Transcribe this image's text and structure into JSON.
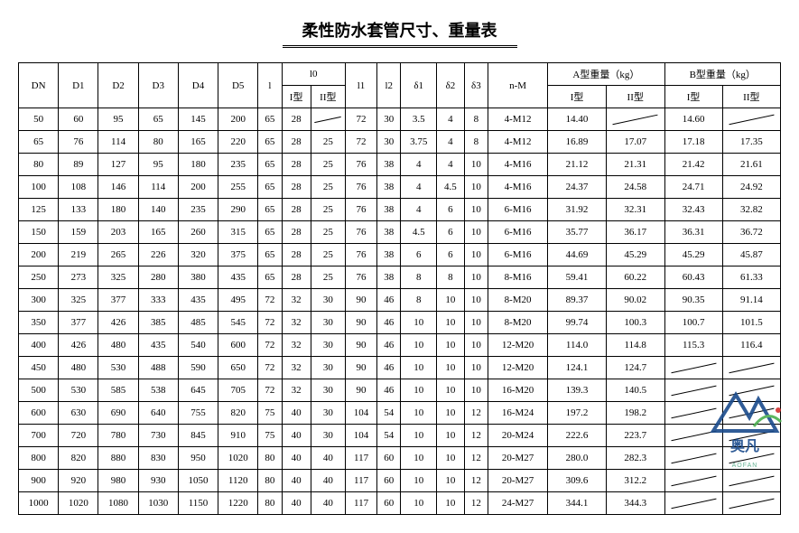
{
  "title": "柔性防水套管尺寸、重量表",
  "headers": {
    "top": [
      "DN",
      "D1",
      "D2",
      "D3",
      "D4",
      "D5",
      "l",
      "l0",
      "l1",
      "l2",
      "δ1",
      "δ2",
      "δ3",
      "n-M",
      "A型重量（kg）",
      "B型重量（kg）"
    ],
    "sub_l0": [
      "I型",
      "II型"
    ],
    "sub_A": [
      "I型",
      "II型"
    ],
    "sub_B": [
      "I型",
      "II型"
    ]
  },
  "rows": [
    {
      "DN": "50",
      "D1": "60",
      "D2": "95",
      "D3": "65",
      "D4": "145",
      "D5": "200",
      "l": "65",
      "l0_I": "28",
      "l0_II": "/",
      "l1": "72",
      "l2": "30",
      "d1": "3.5",
      "d2": "4",
      "d3": "8",
      "nM": "4-M12",
      "A_I": "14.40",
      "A_II": "/",
      "B_I": "14.60",
      "B_II": "/"
    },
    {
      "DN": "65",
      "D1": "76",
      "D2": "114",
      "D3": "80",
      "D4": "165",
      "D5": "220",
      "l": "65",
      "l0_I": "28",
      "l0_II": "25",
      "l1": "72",
      "l2": "30",
      "d1": "3.75",
      "d2": "4",
      "d3": "8",
      "nM": "4-M12",
      "A_I": "16.89",
      "A_II": "17.07",
      "B_I": "17.18",
      "B_II": "17.35"
    },
    {
      "DN": "80",
      "D1": "89",
      "D2": "127",
      "D3": "95",
      "D4": "180",
      "D5": "235",
      "l": "65",
      "l0_I": "28",
      "l0_II": "25",
      "l1": "76",
      "l2": "38",
      "d1": "4",
      "d2": "4",
      "d3": "10",
      "nM": "4-M16",
      "A_I": "21.12",
      "A_II": "21.31",
      "B_I": "21.42",
      "B_II": "21.61"
    },
    {
      "DN": "100",
      "D1": "108",
      "D2": "146",
      "D3": "114",
      "D4": "200",
      "D5": "255",
      "l": "65",
      "l0_I": "28",
      "l0_II": "25",
      "l1": "76",
      "l2": "38",
      "d1": "4",
      "d2": "4.5",
      "d3": "10",
      "nM": "4-M16",
      "A_I": "24.37",
      "A_II": "24.58",
      "B_I": "24.71",
      "B_II": "24.92"
    },
    {
      "DN": "125",
      "D1": "133",
      "D2": "180",
      "D3": "140",
      "D4": "235",
      "D5": "290",
      "l": "65",
      "l0_I": "28",
      "l0_II": "25",
      "l1": "76",
      "l2": "38",
      "d1": "4",
      "d2": "6",
      "d3": "10",
      "nM": "6-M16",
      "A_I": "31.92",
      "A_II": "32.31",
      "B_I": "32.43",
      "B_II": "32.82"
    },
    {
      "DN": "150",
      "D1": "159",
      "D2": "203",
      "D3": "165",
      "D4": "260",
      "D5": "315",
      "l": "65",
      "l0_I": "28",
      "l0_II": "25",
      "l1": "76",
      "l2": "38",
      "d1": "4.5",
      "d2": "6",
      "d3": "10",
      "nM": "6-M16",
      "A_I": "35.77",
      "A_II": "36.17",
      "B_I": "36.31",
      "B_II": "36.72"
    },
    {
      "DN": "200",
      "D1": "219",
      "D2": "265",
      "D3": "226",
      "D4": "320",
      "D5": "375",
      "l": "65",
      "l0_I": "28",
      "l0_II": "25",
      "l1": "76",
      "l2": "38",
      "d1": "6",
      "d2": "6",
      "d3": "10",
      "nM": "6-M16",
      "A_I": "44.69",
      "A_II": "45.29",
      "B_I": "45.29",
      "B_II": "45.87"
    },
    {
      "DN": "250",
      "D1": "273",
      "D2": "325",
      "D3": "280",
      "D4": "380",
      "D5": "435",
      "l": "65",
      "l0_I": "28",
      "l0_II": "25",
      "l1": "76",
      "l2": "38",
      "d1": "8",
      "d2": "8",
      "d3": "10",
      "nM": "8-M16",
      "A_I": "59.41",
      "A_II": "60.22",
      "B_I": "60.43",
      "B_II": "61.33"
    },
    {
      "DN": "300",
      "D1": "325",
      "D2": "377",
      "D3": "333",
      "D4": "435",
      "D5": "495",
      "l": "72",
      "l0_I": "32",
      "l0_II": "30",
      "l1": "90",
      "l2": "46",
      "d1": "8",
      "d2": "10",
      "d3": "10",
      "nM": "8-M20",
      "A_I": "89.37",
      "A_II": "90.02",
      "B_I": "90.35",
      "B_II": "91.14"
    },
    {
      "DN": "350",
      "D1": "377",
      "D2": "426",
      "D3": "385",
      "D4": "485",
      "D5": "545",
      "l": "72",
      "l0_I": "32",
      "l0_II": "30",
      "l1": "90",
      "l2": "46",
      "d1": "10",
      "d2": "10",
      "d3": "10",
      "nM": "8-M20",
      "A_I": "99.74",
      "A_II": "100.3",
      "B_I": "100.7",
      "B_II": "101.5"
    },
    {
      "DN": "400",
      "D1": "426",
      "D2": "480",
      "D3": "435",
      "D4": "540",
      "D5": "600",
      "l": "72",
      "l0_I": "32",
      "l0_II": "30",
      "l1": "90",
      "l2": "46",
      "d1": "10",
      "d2": "10",
      "d3": "10",
      "nM": "12-M20",
      "A_I": "114.0",
      "A_II": "114.8",
      "B_I": "115.3",
      "B_II": "116.4"
    },
    {
      "DN": "450",
      "D1": "480",
      "D2": "530",
      "D3": "488",
      "D4": "590",
      "D5": "650",
      "l": "72",
      "l0_I": "32",
      "l0_II": "30",
      "l1": "90",
      "l2": "46",
      "d1": "10",
      "d2": "10",
      "d3": "10",
      "nM": "12-M20",
      "A_I": "124.1",
      "A_II": "124.7",
      "B_I": "/",
      "B_II": "/"
    },
    {
      "DN": "500",
      "D1": "530",
      "D2": "585",
      "D3": "538",
      "D4": "645",
      "D5": "705",
      "l": "72",
      "l0_I": "32",
      "l0_II": "30",
      "l1": "90",
      "l2": "46",
      "d1": "10",
      "d2": "10",
      "d3": "10",
      "nM": "16-M20",
      "A_I": "139.3",
      "A_II": "140.5",
      "B_I": "/",
      "B_II": "/"
    },
    {
      "DN": "600",
      "D1": "630",
      "D2": "690",
      "D3": "640",
      "D4": "755",
      "D5": "820",
      "l": "75",
      "l0_I": "40",
      "l0_II": "30",
      "l1": "104",
      "l2": "54",
      "d1": "10",
      "d2": "10",
      "d3": "12",
      "nM": "16-M24",
      "A_I": "197.2",
      "A_II": "198.2",
      "B_I": "/",
      "B_II": "/"
    },
    {
      "DN": "700",
      "D1": "720",
      "D2": "780",
      "D3": "730",
      "D4": "845",
      "D5": "910",
      "l": "75",
      "l0_I": "40",
      "l0_II": "30",
      "l1": "104",
      "l2": "54",
      "d1": "10",
      "d2": "10",
      "d3": "12",
      "nM": "20-M24",
      "A_I": "222.6",
      "A_II": "223.7",
      "B_I": "/",
      "B_II": "/"
    },
    {
      "DN": "800",
      "D1": "820",
      "D2": "880",
      "D3": "830",
      "D4": "950",
      "D5": "1020",
      "l": "80",
      "l0_I": "40",
      "l0_II": "40",
      "l1": "117",
      "l2": "60",
      "d1": "10",
      "d2": "10",
      "d3": "12",
      "nM": "20-M27",
      "A_I": "280.0",
      "A_II": "282.3",
      "B_I": "/",
      "B_II": "/"
    },
    {
      "DN": "900",
      "D1": "920",
      "D2": "980",
      "D3": "930",
      "D4": "1050",
      "D5": "1120",
      "l": "80",
      "l0_I": "40",
      "l0_II": "40",
      "l1": "117",
      "l2": "60",
      "d1": "10",
      "d2": "10",
      "d3": "12",
      "nM": "20-M27",
      "A_I": "309.6",
      "A_II": "312.2",
      "B_I": "/",
      "B_II": "/"
    },
    {
      "DN": "1000",
      "D1": "1020",
      "D2": "1080",
      "D3": "1030",
      "D4": "1150",
      "D5": "1220",
      "l": "80",
      "l0_I": "40",
      "l0_II": "40",
      "l1": "117",
      "l2": "60",
      "d1": "10",
      "d2": "10",
      "d3": "12",
      "nM": "24-M27",
      "A_I": "344.1",
      "A_II": "344.3",
      "B_I": "/",
      "B_II": "/"
    }
  ],
  "watermark": {
    "brand": "奥凡",
    "sub": "AOFAN"
  },
  "styling": {
    "type": "table",
    "background_color": "#ffffff",
    "border_color": "#000000",
    "text_color": "#000000",
    "title_fontsize": 18,
    "cell_fontsize": 11,
    "col_count": 19,
    "row_count": 18
  }
}
